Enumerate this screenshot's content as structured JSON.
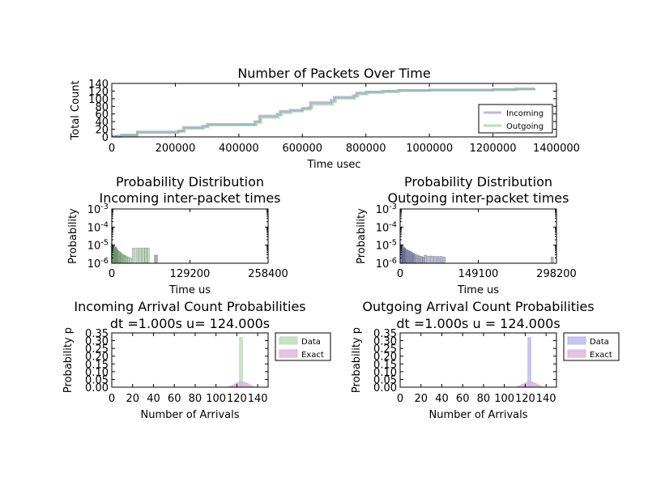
{
  "chart_data": [
    {
      "type": "line",
      "title": "Number of Packets Over Time",
      "xlabel": "Time usec",
      "ylabel": "Total Count",
      "xlim": [
        0,
        1400000
      ],
      "ylim": [
        0,
        140
      ],
      "xticks": [
        "0",
        "200000",
        "400000",
        "600000",
        "800000",
        "1000000",
        "1200000",
        "1400000"
      ],
      "yticks": [
        "0",
        "20",
        "40",
        "60",
        "80",
        "100",
        "120",
        "140"
      ],
      "legend": "lower-right",
      "series": [
        {
          "name": "Incoming",
          "color": "#8080e0",
          "x": [
            0,
            30000,
            80000,
            210000,
            225000,
            285000,
            300000,
            450000,
            465000,
            520000,
            530000,
            560000,
            600000,
            620000,
            625000,
            690000,
            700000,
            760000,
            770000,
            800000,
            850000,
            900000,
            1000000,
            1200000,
            1270000,
            1330000
          ],
          "y": [
            2,
            5,
            13,
            16,
            25,
            28,
            33,
            40,
            55,
            60,
            67,
            70,
            75,
            77,
            90,
            96,
            104,
            108,
            115,
            118,
            120,
            122,
            123,
            124,
            126,
            128
          ]
        },
        {
          "name": "Outgoing",
          "color": "#80c080",
          "x": [
            0,
            30000,
            80000,
            210000,
            230000,
            290000,
            305000,
            455000,
            470000,
            525000,
            535000,
            565000,
            600000,
            625000,
            630000,
            695000,
            705000,
            765000,
            775000,
            805000,
            855000,
            905000,
            1000000,
            1200000,
            1275000,
            1330000
          ],
          "y": [
            1,
            4,
            11,
            14,
            22,
            26,
            31,
            38,
            51,
            57,
            63,
            67,
            72,
            75,
            85,
            92,
            101,
            106,
            112,
            116,
            118,
            121,
            122,
            123,
            125,
            127
          ]
        }
      ]
    },
    {
      "type": "bar",
      "title": "Probability Distribution",
      "subtitle": "Incoming inter-packet times",
      "xlabel": "Time us",
      "ylabel": "Probability",
      "yscale": "log",
      "xlim": [
        0,
        258400
      ],
      "ylim_exp": [
        -6,
        -3
      ],
      "xticks": [
        "0",
        "129200",
        "258400"
      ],
      "yticks": [
        "10^-6",
        "10^-5",
        "10^-4",
        "10^-3"
      ],
      "color": "#4f7f4f",
      "x": [
        1000,
        2500,
        4000,
        5500,
        7000,
        8500,
        10000,
        12000,
        14000,
        16000,
        18500,
        21000,
        24000,
        27000,
        31000,
        36000,
        42000,
        47000,
        52000,
        56000,
        60000,
        72000,
        74000
      ],
      "values": [
        1.2e-05,
        1e-05,
        9e-06,
        8e-06,
        7e-06,
        6e-06,
        5e-06,
        4.5e-06,
        4e-06,
        3.5e-06,
        3e-06,
        2.8e-06,
        2.5e-06,
        2.2e-06,
        2e-06,
        7e-06,
        7e-06,
        7e-06,
        7e-06,
        7e-06,
        7e-06,
        2.8e-06,
        2.8e-06
      ]
    },
    {
      "type": "bar",
      "title": "Probability Distribution",
      "subtitle": "Outgoing inter-packet times",
      "xlabel": "Time us",
      "ylabel": "Probability",
      "yscale": "log",
      "xlim": [
        0,
        298200
      ],
      "ylim_exp": [
        -6,
        -3
      ],
      "xticks": [
        "0",
        "149100",
        "298200"
      ],
      "yticks": [
        "10^-6",
        "10^-5",
        "10^-4",
        "10^-3"
      ],
      "color": "#3f3f6f",
      "x": [
        2000,
        4000,
        6000,
        8000,
        10000,
        13000,
        16000,
        19000,
        22000,
        25000,
        28000,
        32000,
        36000,
        40000,
        44000,
        48000,
        54000,
        60000,
        66000,
        72000,
        78000,
        84000,
        290000
      ],
      "values": [
        1.1e-05,
        9e-06,
        8e-06,
        7e-06,
        6e-06,
        5.5e-06,
        5e-06,
        4.5e-06,
        4e-06,
        3.6e-06,
        3.2e-06,
        2.9e-06,
        2.6e-06,
        2.4e-06,
        2.2e-06,
        2.8e-06,
        2.5e-06,
        2.5e-06,
        2.4e-06,
        2.4e-06,
        2.4e-06,
        2.2e-06,
        2.2e-06
      ]
    },
    {
      "type": "bar",
      "title": "Incoming Arrival Count Probabilities",
      "subtitle": "dt =1.000s u= 124.000s",
      "xlabel": "Number of Arrivals",
      "ylabel": "Probability p",
      "xlim": [
        0,
        150
      ],
      "ylim": [
        0,
        0.35
      ],
      "xticks": [
        "0",
        "20",
        "40",
        "60",
        "80",
        "100",
        "120",
        "140"
      ],
      "yticks": [
        "0.00",
        "0.05",
        "0.10",
        "0.15",
        "0.20",
        "0.25",
        "0.30",
        "0.35"
      ],
      "legend": "outside-right",
      "series": [
        {
          "name": "Data",
          "color": "#b8dcb8",
          "x": [
            124
          ],
          "values": [
            0.32
          ]
        },
        {
          "name": "Exact",
          "color": "#dcb4d4",
          "x": [
            112,
            114,
            116,
            118,
            120,
            122,
            124,
            126,
            128,
            130,
            132,
            134,
            136
          ],
          "values": [
            0.003,
            0.008,
            0.014,
            0.021,
            0.028,
            0.033,
            0.036,
            0.035,
            0.031,
            0.025,
            0.018,
            0.011,
            0.005
          ]
        }
      ]
    },
    {
      "type": "bar",
      "title": "Outgoing Arrival Count Probabilities",
      "subtitle": "dt =1.000s u = 124.000s",
      "xlabel": "Number of Arrivals",
      "ylabel": "Probability p",
      "xlim": [
        0,
        150
      ],
      "ylim": [
        0,
        0.35
      ],
      "xticks": [
        "0",
        "20",
        "40",
        "60",
        "80",
        "100",
        "120",
        "140"
      ],
      "yticks": [
        "0.00",
        "0.05",
        "0.10",
        "0.15",
        "0.20",
        "0.25",
        "0.30",
        "0.35"
      ],
      "legend": "outside-right",
      "series": [
        {
          "name": "Data",
          "color": "#b8b8f0",
          "x": [
            124
          ],
          "values": [
            0.32
          ]
        },
        {
          "name": "Exact",
          "color": "#dcb4d4",
          "x": [
            112,
            114,
            116,
            118,
            120,
            122,
            124,
            126,
            128,
            130,
            132,
            134,
            136
          ],
          "values": [
            0.003,
            0.008,
            0.014,
            0.021,
            0.028,
            0.033,
            0.036,
            0.035,
            0.031,
            0.025,
            0.018,
            0.011,
            0.005
          ]
        }
      ]
    }
  ]
}
